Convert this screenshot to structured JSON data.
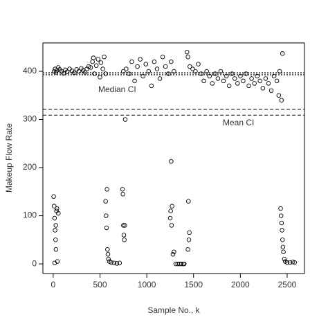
{
  "chart_data": {
    "type": "scatter",
    "xlabel": "Sample No., k",
    "ylabel": "Makeup Flow Rate",
    "x": [
      10,
      20,
      30,
      40,
      55,
      70,
      90,
      110,
      130,
      150,
      175,
      200,
      225,
      250,
      275,
      300,
      320,
      340,
      360,
      380,
      400,
      420,
      430,
      440,
      460,
      480,
      500,
      510,
      530,
      545,
      560,
      5,
      10,
      15,
      20,
      25,
      30,
      35,
      40,
      45,
      15,
      55,
      28,
      560,
      565,
      570,
      575,
      580,
      585,
      590,
      600,
      620,
      650,
      680,
      710,
      740,
      745,
      750,
      755,
      760,
      765,
      770,
      750,
      780,
      810,
      840,
      870,
      900,
      930,
      960,
      990,
      1020,
      1050,
      1080,
      1110,
      1140,
      1170,
      1200,
      1230,
      1260,
      1290,
      1250,
      1255,
      1260,
      1265,
      1270,
      1280,
      1290,
      1310,
      1330,
      1350,
      1370,
      1390,
      1400,
      1430,
      1440,
      1445,
      1450,
      1455,
      1440,
      1460,
      1490,
      1520,
      1550,
      1580,
      1610,
      1640,
      1670,
      1700,
      1730,
      1760,
      1790,
      1820,
      1850,
      1880,
      1910,
      1940,
      1970,
      2000,
      2030,
      2060,
      2090,
      2120,
      2150,
      2180,
      2210,
      2240,
      2270,
      2300,
      2330,
      2360,
      2390,
      2410,
      2420,
      2440,
      2450,
      2430,
      2435,
      2440,
      2445,
      2450,
      2455,
      2460,
      2470,
      2480,
      2500,
      2530,
      2560,
      2580
    ],
    "series": [
      {
        "color": "#000000",
        "values": [
          400,
          405,
          398,
          402,
          408,
          404,
          400,
          396,
          403,
          399,
          405,
          401,
          397,
          404,
          400,
          406,
          402,
          398,
          405,
          410,
          408,
          420,
          428,
          395,
          412,
          425,
          388,
          418,
          405,
          430,
          395,
          140,
          120,
          95,
          70,
          50,
          30,
          110,
          115,
          5,
          2,
          105,
          80,
          130,
          100,
          75,
          155,
          30,
          20,
          10,
          5,
          3,
          2,
          1,
          2,
          155,
          145,
          80,
          60,
          50,
          80,
          300,
          400,
          405,
          395,
          420,
          380,
          410,
          425,
          390,
          415,
          400,
          370,
          420,
          405,
          385,
          430,
          410,
          395,
          420,
          400,
          95,
          110,
          213,
          80,
          120,
          20,
          25,
          0,
          0,
          0,
          0,
          0,
          0,
          440,
          430,
          130,
          50,
          65,
          30,
          410,
          405,
          400,
          415,
          395,
          380,
          400,
          390,
          375,
          395,
          385,
          400,
          380,
          390,
          370,
          395,
          385,
          375,
          390,
          380,
          395,
          370,
          385,
          375,
          390,
          380,
          365,
          385,
          375,
          360,
          390,
          380,
          350,
          400,
          340,
          437,
          115,
          100,
          85,
          70,
          50,
          35,
          25,
          10,
          5,
          3,
          3,
          4,
          3
        ]
      }
    ],
    "reference_lines": [
      {
        "label": "Median CI",
        "values": [
          393,
          397
        ],
        "style": "dotted",
        "color": "#555555"
      },
      {
        "label": "Mean CI",
        "values": [
          309,
          321
        ],
        "style": "dashed",
        "color": "#000000"
      }
    ],
    "xlim": [
      -110,
      2685
    ],
    "ylim": [
      -20,
      459
    ],
    "xticks": [
      0,
      500,
      1000,
      1500,
      2000,
      2500
    ],
    "yticks": [
      0,
      100,
      200,
      300,
      400
    ],
    "grid": false
  }
}
